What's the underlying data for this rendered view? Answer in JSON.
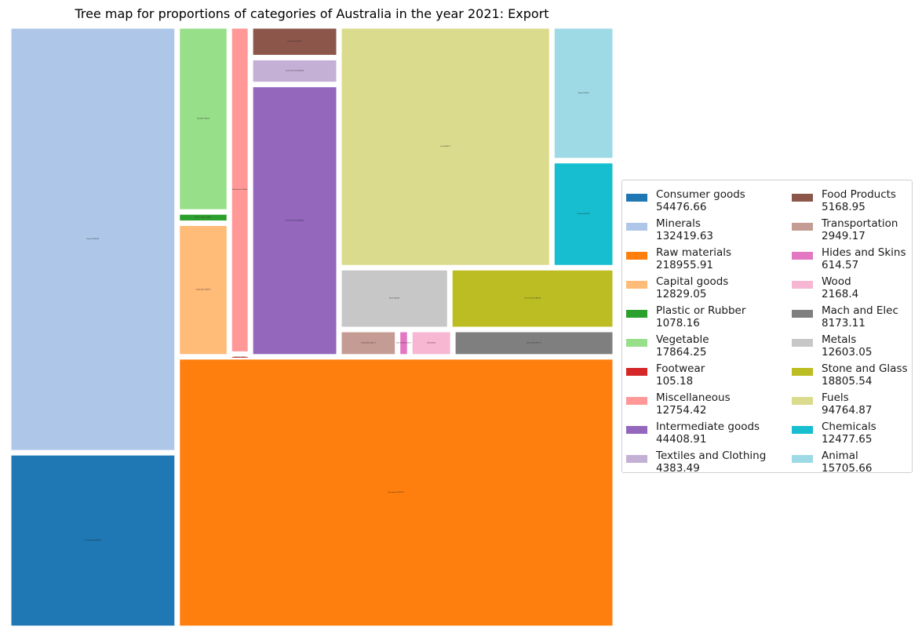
{
  "chart_data": {
    "type": "treemap",
    "title": "Tree map for proportions of categories of Australia in the year 2021: Export",
    "legend_position": "right",
    "legend_columns": 2,
    "items": [
      {
        "name": "Consumer goods",
        "value": "54476.66",
        "color": "#1f77b4"
      },
      {
        "name": "Minerals",
        "value": "132419.63",
        "color": "#aec7e8"
      },
      {
        "name": "Raw materials",
        "value": "218955.91",
        "color": "#ff7f0e"
      },
      {
        "name": "Capital goods",
        "value": "12829.05",
        "color": "#ffbb78"
      },
      {
        "name": "Plastic or Rubber",
        "value": "1078.16",
        "color": "#2ca02c"
      },
      {
        "name": "Vegetable",
        "value": "17864.25",
        "color": "#98df8a"
      },
      {
        "name": "Footwear",
        "value": "105.18",
        "color": "#d62728"
      },
      {
        "name": "Miscellaneous",
        "value": "12754.42",
        "color": "#ff9896"
      },
      {
        "name": "Intermediate goods",
        "value": "44408.91",
        "color": "#9467bd"
      },
      {
        "name": "Textiles and Clothing",
        "value": "4383.49",
        "color": "#c5b0d5"
      },
      {
        "name": "Food Products",
        "value": "5168.95",
        "color": "#8c564b"
      },
      {
        "name": "Transportation",
        "value": "2949.17",
        "color": "#c49c94"
      },
      {
        "name": "Hides and Skins",
        "value": "614.57",
        "color": "#e377c2"
      },
      {
        "name": "Wood",
        "value": "2168.4",
        "color": "#f7b6d2"
      },
      {
        "name": "Mach and Elec",
        "value": "8173.11",
        "color": "#7f7f7f"
      },
      {
        "name": "Metals",
        "value": "12603.05",
        "color": "#c7c7c7"
      },
      {
        "name": "Stone and Glass",
        "value": "18805.54",
        "color": "#bcbd22"
      },
      {
        "name": "Fuels",
        "value": "94764.87",
        "color": "#dbdb8d"
      },
      {
        "name": "Chemicals",
        "value": "12477.65",
        "color": "#17becf"
      },
      {
        "name": "Animal",
        "value": "15705.66",
        "color": "#9edae5"
      }
    ]
  }
}
